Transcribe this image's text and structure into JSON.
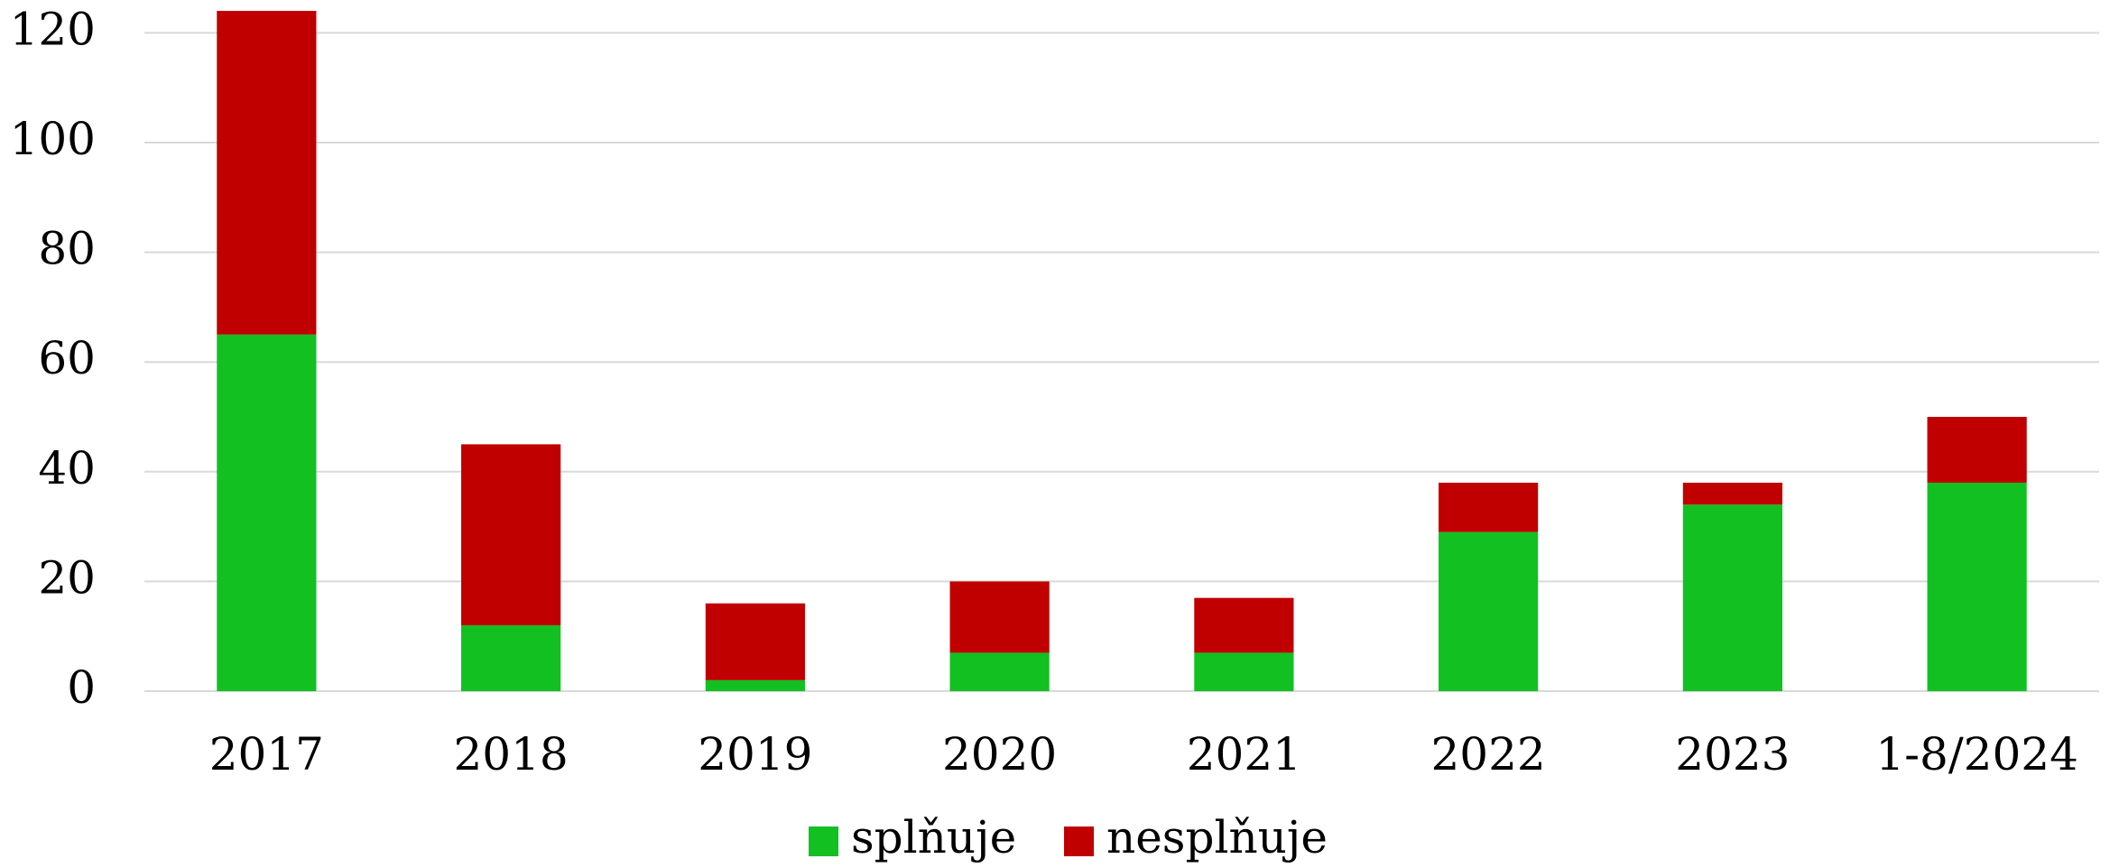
{
  "chart_data": {
    "type": "stacked_bar",
    "categories": [
      "2017",
      "2018",
      "2019",
      "2020",
      "2021",
      "2022",
      "2023",
      "1-8/2024"
    ],
    "series": [
      {
        "name": "splňuje",
        "color": "#12c022",
        "values": [
          65,
          12,
          2,
          7,
          7,
          29,
          34,
          38
        ]
      },
      {
        "name": "nesplňuje",
        "color": "#c00000",
        "values": [
          59,
          33,
          14,
          13,
          10,
          9,
          4,
          12
        ]
      }
    ],
    "ylim": [
      0,
      125
    ],
    "yticks": [
      0,
      20,
      40,
      60,
      80,
      100,
      120
    ],
    "grid": true,
    "legend": "bottom"
  }
}
